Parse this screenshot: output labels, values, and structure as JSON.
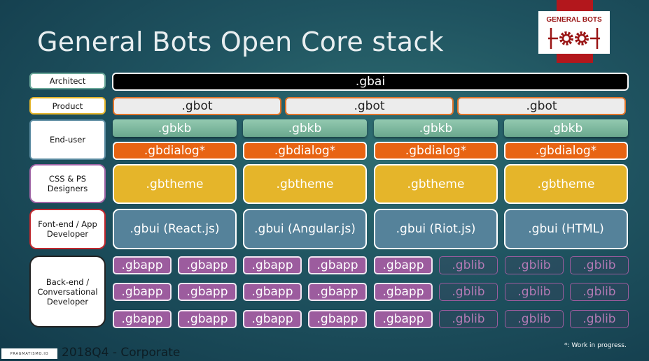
{
  "title": "General Bots Open Core stack",
  "logo": {
    "text": "GENERAL BOTS"
  },
  "roles": [
    {
      "label": "Architect",
      "border": "#6ba89a"
    },
    {
      "label": "Product",
      "border": "#e5b52a"
    },
    {
      "label": "End-user",
      "border": "#5a8aa0"
    },
    {
      "label": "CSS & PS Designers",
      "border": "#a065a6"
    },
    {
      "label": "Font-end / App Developer",
      "border": "#c0272d"
    },
    {
      "label": "Back-end / Conversational Developer",
      "border": "#222222"
    }
  ],
  "stack": {
    "gbai": ".gbai",
    "gbot": [
      ".gbot",
      ".gbot",
      ".gbot"
    ],
    "gbkb": [
      ".gbkb",
      ".gbkb",
      ".gbkb",
      ".gbkb"
    ],
    "gbdialog": [
      ".gbdialog*",
      ".gbdialog*",
      ".gbdialog*",
      ".gbdialog*"
    ],
    "gbtheme": [
      ".gbtheme",
      ".gbtheme",
      ".gbtheme",
      ".gbtheme"
    ],
    "gbui": [
      ".gbui (React.js)",
      ".gbui (Angular.js)",
      ".gbui (Riot.js)",
      ".gbui (HTML)"
    ],
    "packages": [
      [
        ".gbapp",
        ".gbapp",
        ".gbapp",
        ".gbapp",
        ".gbapp",
        ".gblib",
        ".gblib",
        ".gblib"
      ],
      [
        ".gbapp",
        ".gbapp",
        ".gbapp",
        ".gbapp",
        ".gbapp",
        ".gblib",
        ".gblib",
        ".gblib"
      ],
      [
        ".gbapp",
        ".gbapp",
        ".gbapp",
        ".gbapp",
        ".gbapp",
        ".gblib",
        ".gblib",
        ".gblib"
      ]
    ]
  },
  "footer": {
    "logo_text": "PRAGMATISMO.IO",
    "text": "2018Q4 - Corporate",
    "note": "*: Work in progress."
  }
}
